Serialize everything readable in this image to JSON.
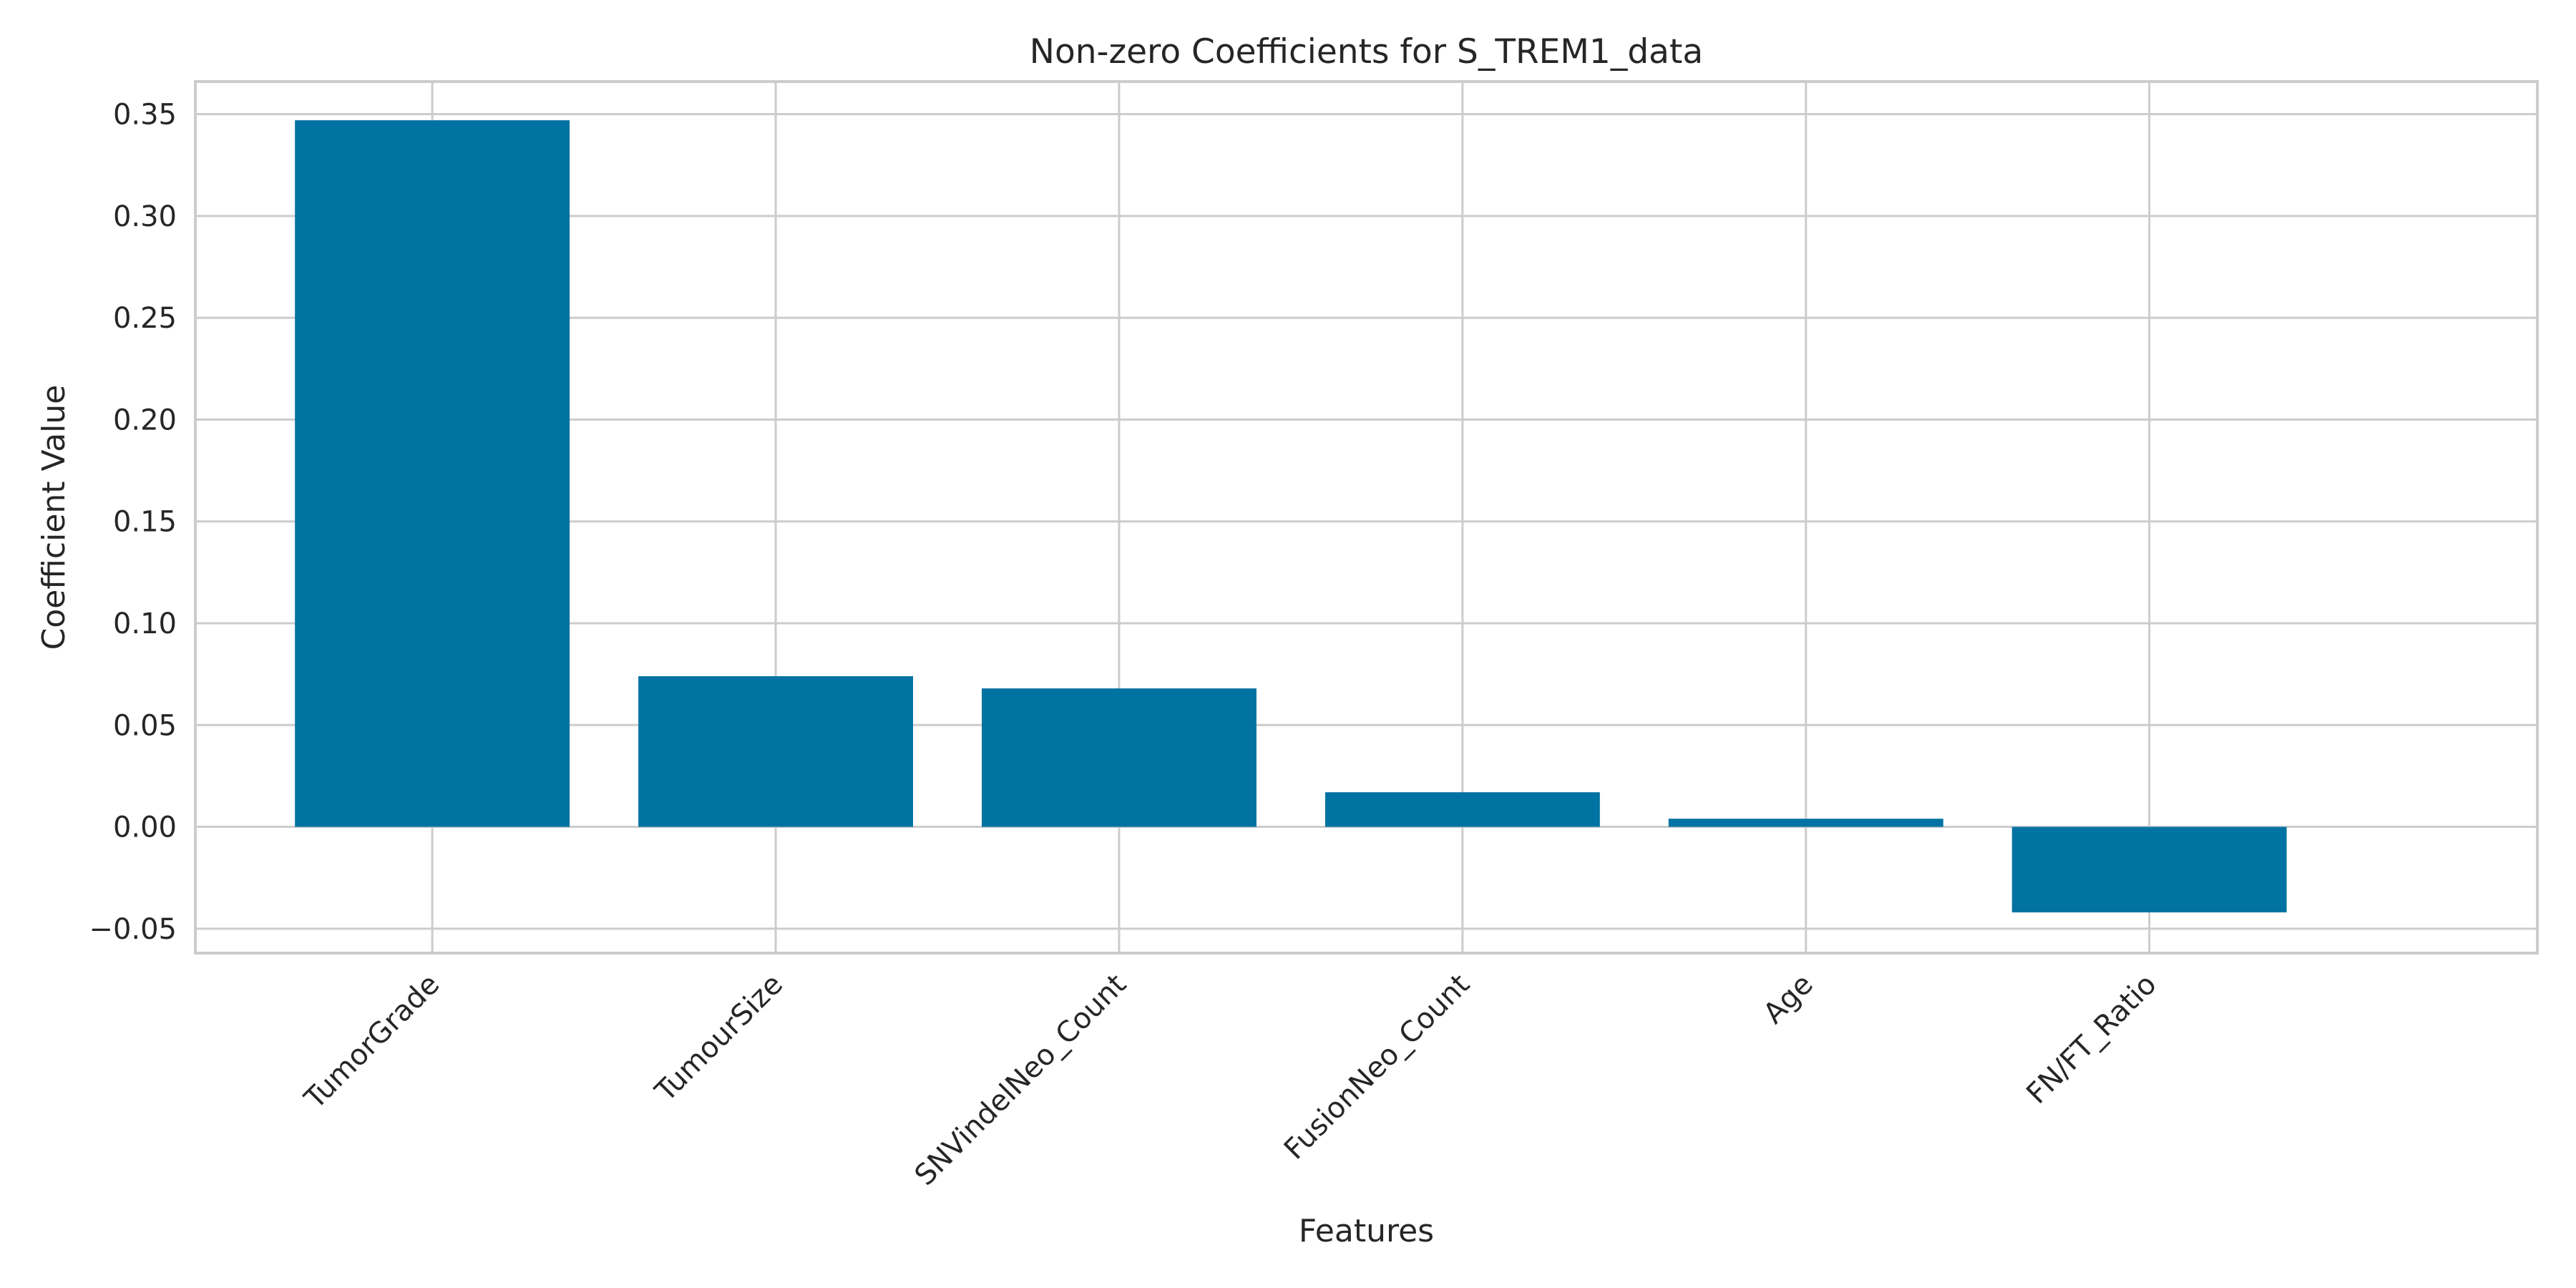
{
  "chart_data": {
    "type": "bar",
    "title": "Non-zero Coefficients for S_TREM1_data",
    "xlabel": "Features",
    "ylabel": "Coefficient Value",
    "categories": [
      "TumorGrade",
      "TumourSize",
      "SNVindelNeo_Count",
      "FusionNeo_Count",
      "Age",
      "FN/FT_Ratio"
    ],
    "values": [
      0.347,
      0.074,
      0.068,
      0.017,
      0.004,
      -0.042
    ],
    "ylim": [
      -0.062,
      0.366
    ],
    "yticks": [
      -0.05,
      0.0,
      0.05,
      0.1,
      0.15,
      0.2,
      0.25,
      0.3,
      0.35
    ],
    "ytick_labels": [
      "−0.05",
      "0.00",
      "0.05",
      "0.10",
      "0.15",
      "0.20",
      "0.25",
      "0.30",
      "0.35"
    ],
    "grid": true,
    "bar_color": "#0173a2"
  }
}
